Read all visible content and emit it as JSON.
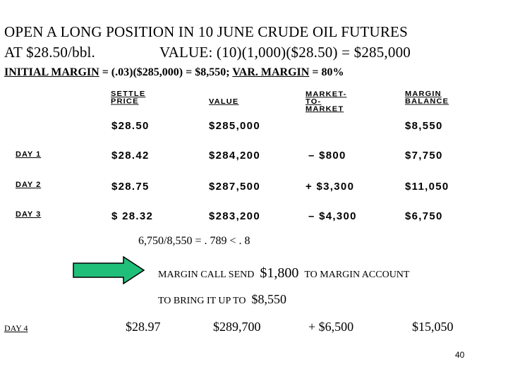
{
  "title": {
    "line1": "OPEN A LONG POSITION IN 10 JUNE CRUDE OIL   FUTURES",
    "line2_left": "AT $28.50/bbl.",
    "line2_right": "VALUE: (10)(1,000)($28.50) = $285,000"
  },
  "margin_line": {
    "initial_label": "INITIAL MARGIN",
    "initial_expr": " = (.03)($285,000) = $8,550; ",
    "var_label": "VAR. MARGIN",
    "var_expr": " = 80%"
  },
  "table": {
    "headers": {
      "settle": [
        "SETTLE",
        "PRICE"
      ],
      "value": [
        "VALUE"
      ],
      "mtm": [
        "MARKET-",
        "TO-",
        "MARKET"
      ],
      "balance": [
        "MARGIN",
        "BALANCE"
      ]
    },
    "initial_row": {
      "settle": "$28.50",
      "value": "$285,000",
      "mtm": "",
      "balance": "$8,550"
    },
    "rows": [
      {
        "day": "DAY 1",
        "settle": "$28.42",
        "value": "$284,200",
        "mtm": "– $800",
        "balance": "$7,750"
      },
      {
        "day": "DAY 2",
        "settle": "$28.75",
        "value": "$287,500",
        "mtm": "+ $3,300",
        "balance": "$11,050"
      },
      {
        "day": "DAY 3",
        "settle": "$ 28.32",
        "value": "$283,200",
        "mtm": "– $4,300",
        "balance": "$6,750"
      }
    ]
  },
  "calc": "6,750/8,550  =  . 789 < . 8",
  "margin_call": {
    "prefix": "MARGIN CALL SEND",
    "amount": "$1,800",
    "suffix": "TO MARGIN ACCOUNT",
    "bring_prefix": "TO BRING IT UP TO",
    "bring_amount": "$8,550",
    "arrow_color": "#1fbf7a"
  },
  "day4": {
    "label": "DAY 4",
    "settle": "$28.97",
    "value": "$289,700",
    "mtm": "+ $6,500",
    "balance": "$15,050"
  },
  "page_number": "40"
}
